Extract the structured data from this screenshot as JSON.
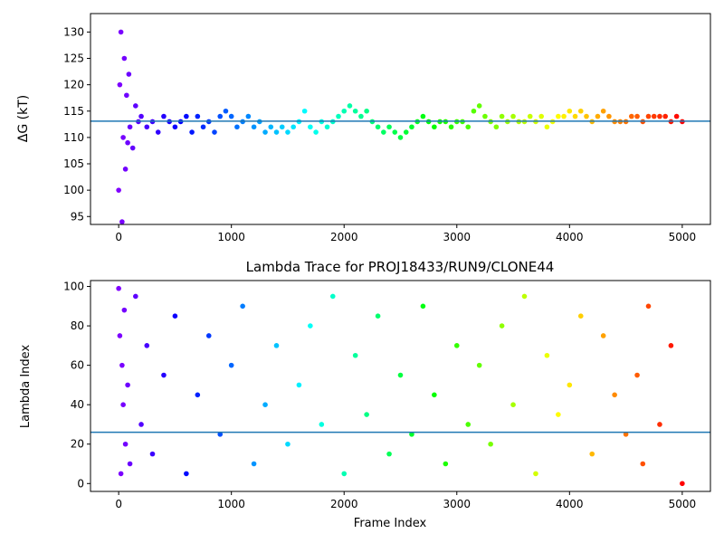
{
  "chart_data": [
    {
      "type": "scatter",
      "title": "",
      "xlabel": "",
      "ylabel": "ΔG (kT)",
      "xlim": [
        -250,
        5250
      ],
      "ylim": [
        93.5,
        133.5
      ],
      "xticks": [
        0,
        1000,
        2000,
        3000,
        4000,
        5000
      ],
      "yticks": [
        95,
        100,
        105,
        110,
        115,
        120,
        125,
        130
      ],
      "reference_line": 113.1,
      "colormap": "rainbow",
      "color_by": "frame index",
      "grid": false,
      "series": [
        {
          "x": [
            0,
            10,
            20,
            30,
            40,
            50,
            60,
            70,
            80,
            90,
            100,
            125,
            150,
            175,
            200,
            250,
            300,
            350,
            400,
            450,
            500,
            550,
            600,
            650,
            700,
            750,
            800,
            850,
            900,
            950,
            1000,
            1050,
            1100,
            1150,
            1200,
            1250,
            1300,
            1350,
            1400,
            1450,
            1500,
            1550,
            1600,
            1650,
            1700,
            1750,
            1800,
            1850,
            1900,
            1950,
            2000,
            2050,
            2100,
            2150,
            2200,
            2250,
            2300,
            2350,
            2400,
            2450,
            2500,
            2550,
            2600,
            2650,
            2700,
            2750,
            2800,
            2850,
            2900,
            2950,
            3000,
            3050,
            3100,
            3150,
            3200,
            3250,
            3300,
            3350,
            3400,
            3450,
            3500,
            3550,
            3600,
            3650,
            3700,
            3750,
            3800,
            3850,
            3900,
            3950,
            4000,
            4050,
            4100,
            4150,
            4200,
            4250,
            4300,
            4350,
            4400,
            4450,
            4500,
            4550,
            4600,
            4650,
            4700,
            4750,
            4800,
            4850,
            4900,
            4950,
            5000
          ],
          "y": [
            100,
            120,
            130,
            94,
            110,
            125,
            104,
            118,
            109,
            122,
            112,
            108,
            116,
            113,
            114,
            112,
            113,
            111,
            114,
            113,
            112,
            113,
            114,
            111,
            114,
            112,
            113,
            111,
            114,
            115,
            114,
            112,
            113,
            114,
            112,
            113,
            111,
            112,
            111,
            112,
            111,
            112,
            113,
            115,
            112,
            111,
            113,
            112,
            113,
            114,
            115,
            116,
            115,
            114,
            115,
            113,
            112,
            111,
            112,
            111,
            110,
            111,
            112,
            113,
            114,
            113,
            112,
            113,
            113,
            112,
            113,
            113,
            112,
            115,
            116,
            114,
            113,
            112,
            114,
            113,
            114,
            113,
            113,
            114,
            113,
            114,
            112,
            113,
            114,
            114,
            115,
            114,
            115,
            114,
            113,
            114,
            115,
            114,
            113,
            113,
            113,
            114,
            114,
            113,
            114,
            114,
            114,
            114,
            113,
            114,
            113
          ]
        }
      ]
    },
    {
      "type": "scatter",
      "title": "Lambda Trace for PROJ18433/RUN9/CLONE44",
      "xlabel": "Frame Index",
      "ylabel": "Lambda Index",
      "xlim": [
        -250,
        5250
      ],
      "ylim": [
        -4,
        103
      ],
      "xticks": [
        0,
        1000,
        2000,
        3000,
        4000,
        5000
      ],
      "yticks": [
        0,
        20,
        40,
        60,
        80,
        100
      ],
      "reference_line": 26,
      "colormap": "rainbow",
      "color_by": "frame index",
      "grid": false,
      "series": [
        {
          "x": [
            0,
            10,
            20,
            30,
            40,
            50,
            60,
            80,
            100,
            150,
            200,
            250,
            300,
            400,
            500,
            600,
            700,
            800,
            900,
            1000,
            1100,
            1200,
            1300,
            1400,
            1500,
            1600,
            1700,
            1800,
            1900,
            2000,
            2100,
            2200,
            2300,
            2400,
            2500,
            2600,
            2700,
            2800,
            2900,
            3000,
            3100,
            3200,
            3300,
            3400,
            3500,
            3600,
            3700,
            3800,
            3900,
            4000,
            4100,
            4200,
            4300,
            4400,
            4500,
            4600,
            4650,
            4700,
            4800,
            4900,
            5000
          ],
          "y": [
            99,
            75,
            5,
            60,
            40,
            88,
            20,
            50,
            10,
            95,
            30,
            70,
            15,
            55,
            85,
            5,
            45,
            75,
            25,
            60,
            90,
            10,
            40,
            70,
            20,
            50,
            80,
            30,
            95,
            5,
            65,
            35,
            85,
            15,
            55,
            25,
            90,
            45,
            10,
            70,
            30,
            60,
            20,
            80,
            40,
            95,
            5,
            65,
            35,
            50,
            85,
            15,
            75,
            45,
            25,
            55,
            10,
            90,
            30,
            70,
            0
          ]
        }
      ]
    }
  ]
}
